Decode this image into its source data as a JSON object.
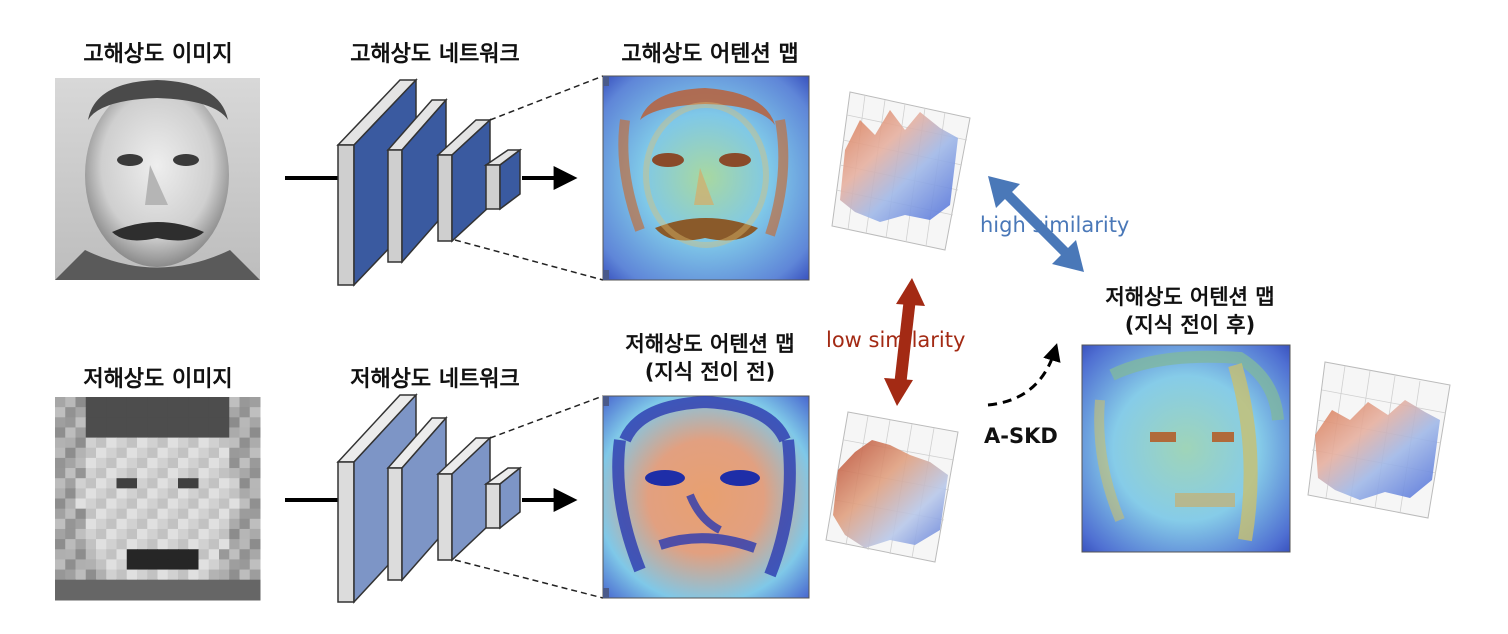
{
  "labels": {
    "hr_image": "고해상도 이미지",
    "hr_network": "고해상도 네트워크",
    "hr_attention": "고해상도 어텐션 맵",
    "lr_image": "저해상도 이미지",
    "lr_network": "저해상도 네트워크",
    "lr_attention_line1": "저해상도 어텐션 맵",
    "lr_attention_line2": "(지식 전이 전)",
    "lr_after_line1": "저해상도 어텐션 맵",
    "lr_after_line2": "(지식 전이 후)"
  },
  "annotations": {
    "high_similarity": "high similarity",
    "low_similarity": "low similarity",
    "method": "A-SKD"
  },
  "colors": {
    "network_dark": "#3a5aa0",
    "network_light": "#7d95c6",
    "network_side": "#d9d9d9",
    "high_similarity": "#4a78b8",
    "low_similarity": "#a32a14"
  }
}
